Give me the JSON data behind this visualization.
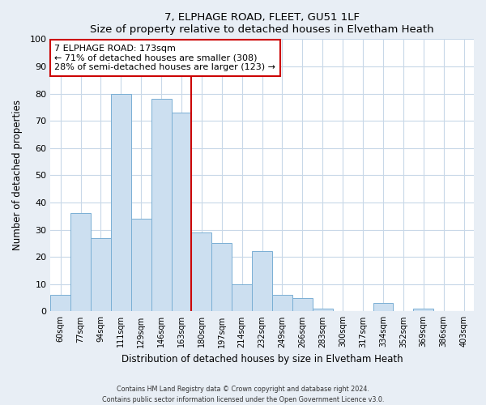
{
  "title": "7, ELPHAGE ROAD, FLEET, GU51 1LF",
  "subtitle": "Size of property relative to detached houses in Elvetham Heath",
  "xlabel": "Distribution of detached houses by size in Elvetham Heath",
  "ylabel": "Number of detached properties",
  "bar_labels": [
    "60sqm",
    "77sqm",
    "94sqm",
    "111sqm",
    "129sqm",
    "146sqm",
    "163sqm",
    "180sqm",
    "197sqm",
    "214sqm",
    "232sqm",
    "249sqm",
    "266sqm",
    "283sqm",
    "300sqm",
    "317sqm",
    "334sqm",
    "352sqm",
    "369sqm",
    "386sqm",
    "403sqm"
  ],
  "bar_values": [
    6,
    36,
    27,
    80,
    34,
    78,
    73,
    29,
    25,
    10,
    22,
    6,
    5,
    1,
    0,
    0,
    3,
    0,
    1,
    0,
    0
  ],
  "bar_color": "#ccdff0",
  "bar_edge_color": "#7aafd4",
  "ylim": [
    0,
    100
  ],
  "yticks": [
    0,
    10,
    20,
    30,
    40,
    50,
    60,
    70,
    80,
    90,
    100
  ],
  "annotation_box_text_line1": "7 ELPHAGE ROAD: 173sqm",
  "annotation_box_text_line2": "← 71% of detached houses are smaller (308)",
  "annotation_box_text_line3": "28% of semi-detached houses are larger (123) →",
  "annotation_box_color": "#ffffff",
  "annotation_box_edge_color": "#cc0000",
  "vertical_line_color": "#cc0000",
  "vertical_line_x": 6.5,
  "footer_line1": "Contains HM Land Registry data © Crown copyright and database right 2024.",
  "footer_line2": "Contains public sector information licensed under the Open Government Licence v3.0.",
  "bg_color": "#e8eef5",
  "plot_bg_color": "#ffffff",
  "grid_color": "#c8d8e8"
}
